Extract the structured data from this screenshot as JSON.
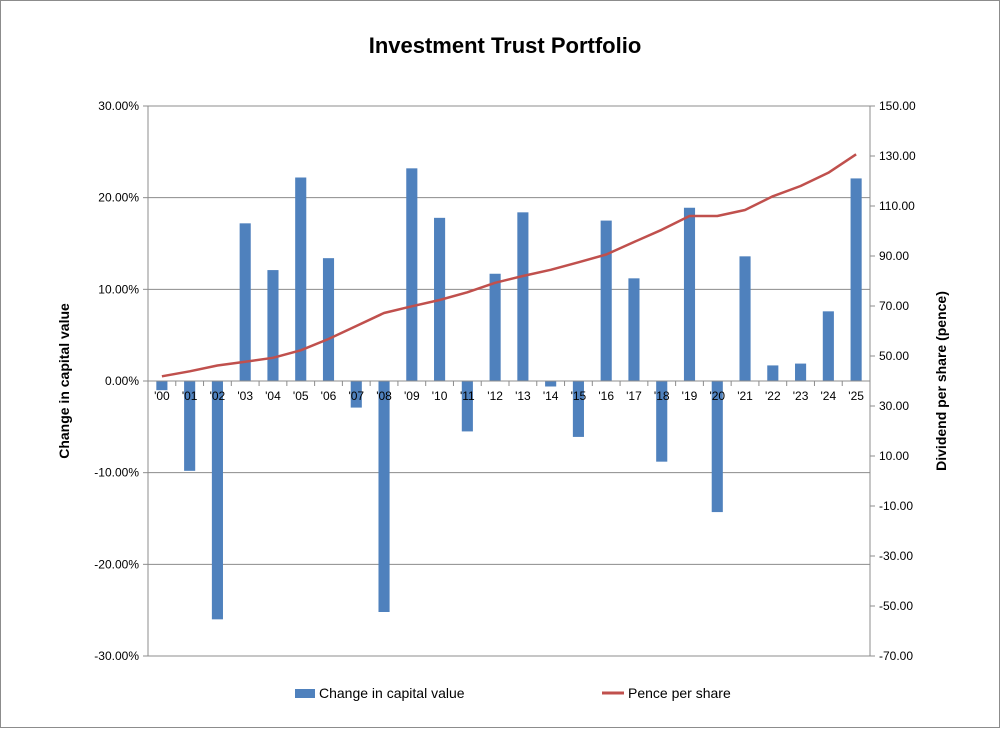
{
  "chart_data": {
    "type": "bar+line",
    "title": "Investment Trust Portfolio",
    "categories": [
      "'00",
      "'01",
      "'02",
      "'03",
      "'04",
      "'05",
      "'06",
      "'07",
      "'08",
      "'09",
      "'10",
      "'11",
      "'12",
      "'13",
      "'14",
      "'15",
      "'16",
      "'17",
      "'18",
      "'19",
      "'20",
      "'21",
      "'22",
      "'23",
      "'24",
      "'25"
    ],
    "series": [
      {
        "name": "Change in capital value",
        "kind": "bar",
        "axis": "left",
        "color": "#4f81bd",
        "values": [
          -1.0,
          -9.8,
          -26.0,
          17.2,
          12.1,
          22.2,
          13.4,
          -2.9,
          -25.2,
          23.2,
          17.8,
          -5.5,
          11.7,
          18.4,
          -0.6,
          -6.1,
          17.5,
          11.2,
          -8.8,
          18.9,
          -14.3,
          13.6,
          1.7,
          1.9,
          7.6,
          22.1
        ]
      },
      {
        "name": "Pence per share",
        "kind": "line",
        "axis": "right",
        "color": "#c0504d",
        "values": [
          41.9,
          43.9,
          46.2,
          47.7,
          49.3,
          52.3,
          56.8,
          62.0,
          67.2,
          69.9,
          72.4,
          75.5,
          79.3,
          82.0,
          84.5,
          87.5,
          90.6,
          95.6,
          100.5,
          106.0,
          106.0,
          108.4,
          113.9,
          118.0,
          123.3,
          130.7
        ]
      }
    ],
    "ylabel": "Change in capital value",
    "y2label": "Dividend per share (pence)",
    "ylim": [
      -30,
      30
    ],
    "y2lim": [
      -70,
      150
    ],
    "yticks": [
      "-30.00%",
      "-20.00%",
      "-10.00%",
      "0.00%",
      "10.00%",
      "20.00%",
      "30.00%"
    ],
    "y2ticks": [
      "-70.00",
      "-50.00",
      "-30.00",
      "-10.00",
      "10.00",
      "30.00",
      "50.00",
      "70.00",
      "90.00",
      "110.00",
      "130.00",
      "150.00"
    ],
    "grid": true,
    "legend_position": "bottom"
  }
}
